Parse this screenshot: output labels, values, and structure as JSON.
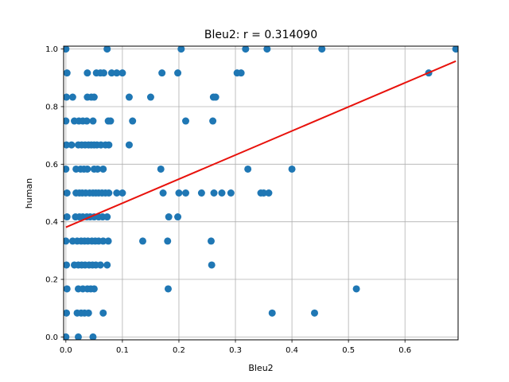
{
  "chart_data": {
    "type": "scatter",
    "title": "Bleu2: r = 0.314090",
    "xlabel": "Bleu2",
    "ylabel": "human",
    "xlim": [
      -0.004,
      0.694
    ],
    "ylim": [
      -0.01,
      1.01
    ],
    "x_ticks": [
      "0.0",
      "0.1",
      "0.2",
      "0.3",
      "0.4",
      "0.5",
      "0.6"
    ],
    "y_ticks": [
      "0.0",
      "0.2",
      "0.4",
      "0.6",
      "0.8",
      "1.0"
    ],
    "grid": true,
    "colors": {
      "points": "#1f77b4",
      "fit_line": "#e8120c",
      "grid": "#b0b0b0"
    },
    "fit_line": {
      "x": [
        0.0,
        0.69
      ],
      "y": [
        0.381,
        0.958
      ]
    },
    "points": [
      [
        0.0,
        1.0
      ],
      [
        0.073,
        1.0
      ],
      [
        0.204,
        1.0
      ],
      [
        0.318,
        1.0
      ],
      [
        0.356,
        1.0
      ],
      [
        0.453,
        1.0
      ],
      [
        0.69,
        1.0
      ],
      [
        0.002,
        0.917
      ],
      [
        0.038,
        0.917
      ],
      [
        0.054,
        0.917
      ],
      [
        0.061,
        0.917
      ],
      [
        0.067,
        0.917
      ],
      [
        0.081,
        0.917
      ],
      [
        0.09,
        0.917
      ],
      [
        0.1,
        0.917
      ],
      [
        0.17,
        0.917
      ],
      [
        0.198,
        0.917
      ],
      [
        0.303,
        0.917
      ],
      [
        0.31,
        0.917
      ],
      [
        0.642,
        0.917
      ],
      [
        0.001,
        0.833
      ],
      [
        0.012,
        0.833
      ],
      [
        0.038,
        0.833
      ],
      [
        0.045,
        0.833
      ],
      [
        0.05,
        0.833
      ],
      [
        0.112,
        0.833
      ],
      [
        0.15,
        0.833
      ],
      [
        0.261,
        0.833
      ],
      [
        0.265,
        0.833
      ],
      [
        0.0,
        0.75
      ],
      [
        0.015,
        0.75
      ],
      [
        0.023,
        0.75
      ],
      [
        0.03,
        0.75
      ],
      [
        0.037,
        0.75
      ],
      [
        0.048,
        0.75
      ],
      [
        0.075,
        0.75
      ],
      [
        0.079,
        0.75
      ],
      [
        0.118,
        0.75
      ],
      [
        0.212,
        0.75
      ],
      [
        0.26,
        0.75
      ],
      [
        0.001,
        0.667
      ],
      [
        0.01,
        0.667
      ],
      [
        0.022,
        0.667
      ],
      [
        0.028,
        0.667
      ],
      [
        0.034,
        0.667
      ],
      [
        0.04,
        0.667
      ],
      [
        0.045,
        0.667
      ],
      [
        0.05,
        0.667
      ],
      [
        0.055,
        0.667
      ],
      [
        0.062,
        0.667
      ],
      [
        0.07,
        0.667
      ],
      [
        0.076,
        0.667
      ],
      [
        0.112,
        0.667
      ],
      [
        0.0,
        0.583
      ],
      [
        0.018,
        0.583
      ],
      [
        0.026,
        0.583
      ],
      [
        0.032,
        0.583
      ],
      [
        0.038,
        0.583
      ],
      [
        0.05,
        0.583
      ],
      [
        0.056,
        0.583
      ],
      [
        0.066,
        0.583
      ],
      [
        0.168,
        0.583
      ],
      [
        0.322,
        0.583
      ],
      [
        0.4,
        0.583
      ],
      [
        0.002,
        0.5
      ],
      [
        0.018,
        0.5
      ],
      [
        0.024,
        0.5
      ],
      [
        0.029,
        0.5
      ],
      [
        0.035,
        0.5
      ],
      [
        0.042,
        0.5
      ],
      [
        0.048,
        0.5
      ],
      [
        0.053,
        0.5
      ],
      [
        0.058,
        0.5
      ],
      [
        0.064,
        0.5
      ],
      [
        0.07,
        0.5
      ],
      [
        0.076,
        0.5
      ],
      [
        0.09,
        0.5
      ],
      [
        0.1,
        0.5
      ],
      [
        0.172,
        0.5
      ],
      [
        0.2,
        0.5
      ],
      [
        0.212,
        0.5
      ],
      [
        0.24,
        0.5
      ],
      [
        0.262,
        0.5
      ],
      [
        0.276,
        0.5
      ],
      [
        0.292,
        0.5
      ],
      [
        0.345,
        0.5
      ],
      [
        0.35,
        0.5
      ],
      [
        0.359,
        0.5
      ],
      [
        0.002,
        0.417
      ],
      [
        0.017,
        0.417
      ],
      [
        0.024,
        0.417
      ],
      [
        0.03,
        0.417
      ],
      [
        0.037,
        0.417
      ],
      [
        0.043,
        0.417
      ],
      [
        0.05,
        0.417
      ],
      [
        0.058,
        0.417
      ],
      [
        0.065,
        0.417
      ],
      [
        0.073,
        0.417
      ],
      [
        0.182,
        0.417
      ],
      [
        0.198,
        0.417
      ],
      [
        0.0,
        0.333
      ],
      [
        0.012,
        0.333
      ],
      [
        0.02,
        0.333
      ],
      [
        0.027,
        0.333
      ],
      [
        0.033,
        0.333
      ],
      [
        0.039,
        0.333
      ],
      [
        0.046,
        0.333
      ],
      [
        0.052,
        0.333
      ],
      [
        0.058,
        0.333
      ],
      [
        0.066,
        0.333
      ],
      [
        0.075,
        0.333
      ],
      [
        0.136,
        0.333
      ],
      [
        0.18,
        0.333
      ],
      [
        0.257,
        0.333
      ],
      [
        0.001,
        0.25
      ],
      [
        0.015,
        0.25
      ],
      [
        0.022,
        0.25
      ],
      [
        0.028,
        0.25
      ],
      [
        0.034,
        0.25
      ],
      [
        0.041,
        0.25
      ],
      [
        0.047,
        0.25
      ],
      [
        0.053,
        0.25
      ],
      [
        0.061,
        0.25
      ],
      [
        0.073,
        0.25
      ],
      [
        0.258,
        0.25
      ],
      [
        0.002,
        0.167
      ],
      [
        0.022,
        0.167
      ],
      [
        0.03,
        0.167
      ],
      [
        0.038,
        0.167
      ],
      [
        0.044,
        0.167
      ],
      [
        0.05,
        0.167
      ],
      [
        0.181,
        0.167
      ],
      [
        0.514,
        0.167
      ],
      [
        0.001,
        0.083
      ],
      [
        0.02,
        0.083
      ],
      [
        0.027,
        0.083
      ],
      [
        0.033,
        0.083
      ],
      [
        0.04,
        0.083
      ],
      [
        0.066,
        0.083
      ],
      [
        0.365,
        0.083
      ],
      [
        0.44,
        0.083
      ],
      [
        0.0,
        0.0
      ],
      [
        0.022,
        0.0
      ],
      [
        0.048,
        0.0
      ]
    ]
  }
}
